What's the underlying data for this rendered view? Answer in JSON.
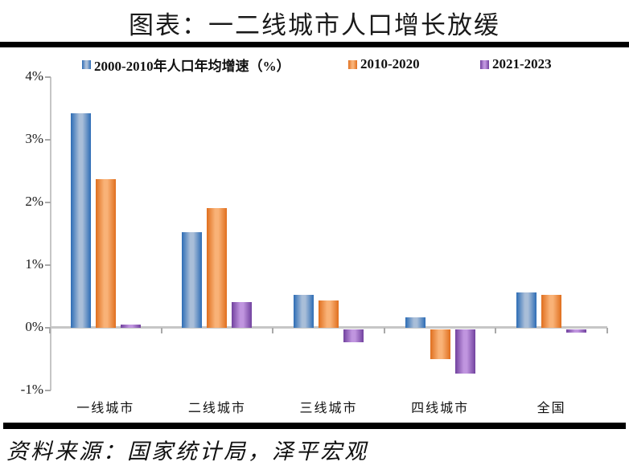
{
  "title": "图表：一二线城市人口增长放缓",
  "source": "资料来源：国家统计局，泽平宏观",
  "legend": [
    {
      "label": "2000-2010年人口年均增速（%）"
    },
    {
      "label": "2010-2020"
    },
    {
      "label": "2021-2023"
    }
  ],
  "colors": {
    "series_blue_edge": "#2d6cb5",
    "series_blue_light": "#a9bed8",
    "series_orange_edge": "#e06f1e",
    "series_orange_light": "#f9b277",
    "series_purple_edge": "#71419e",
    "series_purple_light": "#c095df",
    "axis_gray": "#c6c6c6",
    "divider_black": "#000000"
  },
  "chart_data": {
    "type": "bar",
    "title": "图表：一二线城市人口增长放缓",
    "categories": [
      "一线城市",
      "二线城市",
      "三线城市",
      "四线城市",
      "全国"
    ],
    "series": [
      {
        "name": "2000-2010年人口年均增速（%）",
        "edge": "#2d6cb5",
        "light": "#a9bed8",
        "values": [
          3.42,
          1.53,
          0.53,
          0.17,
          0.57
        ]
      },
      {
        "name": "2010-2020",
        "edge": "#e06f1e",
        "light": "#f9b277",
        "values": [
          2.37,
          1.91,
          0.44,
          -0.47,
          0.52
        ]
      },
      {
        "name": "2021-2023",
        "edge": "#71419e",
        "light": "#c095df",
        "values": [
          0.05,
          0.41,
          -0.2,
          -0.7,
          -0.05
        ]
      }
    ],
    "xlabel": "",
    "ylabel": "",
    "ylim": [
      -1,
      4
    ],
    "yticks": [
      "4%",
      "3%",
      "2%",
      "1%",
      "0%",
      "-1%"
    ],
    "ytick_values": [
      4,
      3,
      2,
      1,
      0,
      -1
    ],
    "grid": false,
    "legend_position": "top"
  }
}
